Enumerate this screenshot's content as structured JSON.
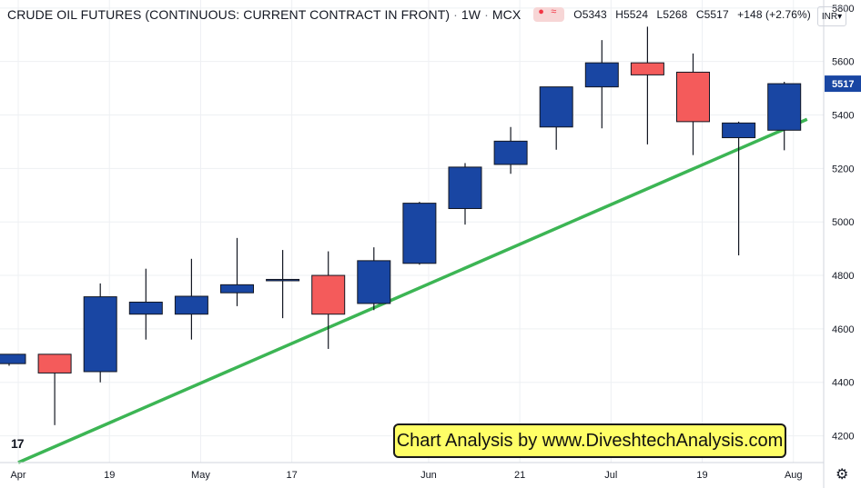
{
  "header": {
    "title": "CRUDE OIL FUTURES (CONTINUOUS: CURRENT CONTRACT IN FRONT)",
    "interval": "1W",
    "exchange": "MCX",
    "open_label": "O5343",
    "high_label": "H5524",
    "low_label": "L5268",
    "close_label": "C5517",
    "change_label": "+148 (+2.76%)",
    "currency": "INR"
  },
  "banner_text": "Chart Analysis by www.DiveshtechAnalysis.com",
  "colors": {
    "up": "#1946a3",
    "down": "#f45b5b",
    "trendline": "#3cb554",
    "grid": "#eef0f3",
    "price_tag": "#1946a3"
  },
  "chart_data": {
    "type": "candlestick",
    "ylim": [
      4100,
      5830
    ],
    "y_ticks": [
      4200,
      4400,
      4600,
      4800,
      5000,
      5200,
      5400,
      5600,
      5800
    ],
    "x_ticks": [
      {
        "label": "Apr",
        "index": 0.4
      },
      {
        "label": "19",
        "index": 2.4
      },
      {
        "label": "May",
        "index": 4.4
      },
      {
        "label": "17",
        "index": 6.4
      },
      {
        "label": "Jun",
        "index": 9.4
      },
      {
        "label": "21",
        "index": 11.4
      },
      {
        "label": "Jul",
        "index": 13.4
      },
      {
        "label": "19",
        "index": 15.4
      },
      {
        "label": "Aug",
        "index": 17.4
      }
    ],
    "last_price_label": "5517",
    "last_price": 5517,
    "candles": [
      {
        "o": 4470,
        "h": 4505,
        "l": 4462,
        "c": 4505
      },
      {
        "o": 4505,
        "h": 4505,
        "l": 4240,
        "c": 4435
      },
      {
        "o": 4440,
        "h": 4770,
        "l": 4400,
        "c": 4720
      },
      {
        "o": 4655,
        "h": 4825,
        "l": 4560,
        "c": 4700
      },
      {
        "o": 4655,
        "h": 4862,
        "l": 4560,
        "c": 4722
      },
      {
        "o": 4735,
        "h": 4940,
        "l": 4685,
        "c": 4765
      },
      {
        "o": 4785,
        "h": 4895,
        "l": 4640,
        "c": 4785
      },
      {
        "o": 4800,
        "h": 4890,
        "l": 4525,
        "c": 4655
      },
      {
        "o": 4695,
        "h": 4905,
        "l": 4670,
        "c": 4855
      },
      {
        "o": 4845,
        "h": 5075,
        "l": 4840,
        "c": 5070
      },
      {
        "o": 5050,
        "h": 5220,
        "l": 4990,
        "c": 5205
      },
      {
        "o": 5215,
        "h": 5355,
        "l": 5180,
        "c": 5302
      },
      {
        "o": 5355,
        "h": 5505,
        "l": 5270,
        "c": 5505
      },
      {
        "o": 5505,
        "h": 5680,
        "l": 5350,
        "c": 5595
      },
      {
        "o": 5595,
        "h": 5730,
        "l": 5290,
        "c": 5550
      },
      {
        "o": 5560,
        "h": 5630,
        "l": 5250,
        "c": 5375
      },
      {
        "o": 5315,
        "h": 5375,
        "l": 4875,
        "c": 5370
      },
      {
        "o": 5343,
        "h": 5524,
        "l": 5268,
        "c": 5517
      }
    ],
    "trendline": [
      {
        "index": 0.4,
        "price": 4100
      },
      {
        "index": 17.7,
        "price": 5384
      }
    ]
  }
}
